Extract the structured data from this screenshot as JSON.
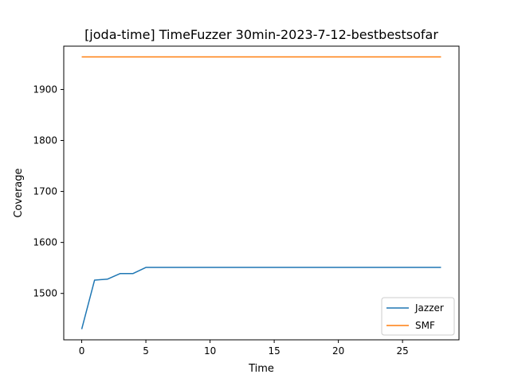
{
  "chart_data": {
    "type": "line",
    "title": "[joda-time] TimeFuzzer 30min-2023-7-12-bestbestsofar",
    "xlabel": "Time",
    "ylabel": "Coverage",
    "xlim": [
      -1.4,
      29.4
    ],
    "ylim": [
      1409,
      1985
    ],
    "xticks": [
      0,
      5,
      10,
      15,
      20,
      25
    ],
    "yticks": [
      1500,
      1600,
      1700,
      1800,
      1900
    ],
    "grid": false,
    "legend_position": "lower right",
    "series": [
      {
        "name": "Jazzer",
        "color": "#1f77b4",
        "x": [
          0,
          1,
          2,
          3,
          4,
          5,
          6,
          7,
          8,
          9,
          10,
          11,
          12,
          13,
          14,
          15,
          16,
          17,
          18,
          19,
          20,
          21,
          22,
          23,
          24,
          25,
          26,
          27,
          28
        ],
        "y": [
          1430,
          1526,
          1528,
          1539,
          1539,
          1551,
          1551,
          1551,
          1551,
          1551,
          1551,
          1551,
          1551,
          1551,
          1551,
          1551,
          1551,
          1551,
          1551,
          1551,
          1551,
          1551,
          1551,
          1551,
          1551,
          1551,
          1551,
          1551,
          1551
        ]
      },
      {
        "name": "SMF",
        "color": "#ff7f0e",
        "x": [
          0,
          1,
          2,
          3,
          4,
          5,
          6,
          7,
          8,
          9,
          10,
          11,
          12,
          13,
          14,
          15,
          16,
          17,
          18,
          19,
          20,
          21,
          22,
          23,
          24,
          25,
          26,
          27,
          28
        ],
        "y": [
          1964,
          1964,
          1964,
          1964,
          1964,
          1964,
          1964,
          1964,
          1964,
          1964,
          1964,
          1964,
          1964,
          1964,
          1964,
          1964,
          1964,
          1964,
          1964,
          1964,
          1964,
          1964,
          1964,
          1964,
          1964,
          1964,
          1964,
          1964,
          1964
        ]
      }
    ]
  }
}
